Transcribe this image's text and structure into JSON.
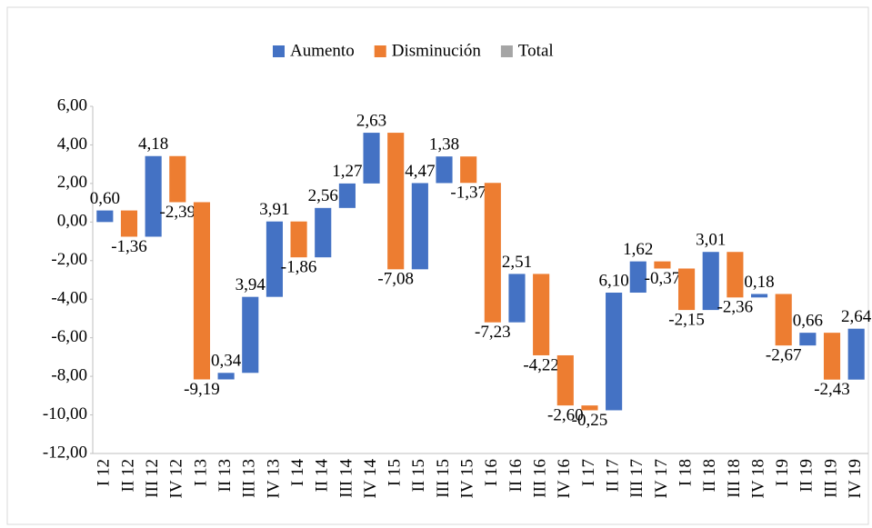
{
  "chart_data": {
    "type": "waterfall",
    "categories": [
      "I 12",
      "II 12",
      "III 12",
      "IV 12",
      "I 13",
      "II 13",
      "III 13",
      "IV 13",
      "I 14",
      "II 14",
      "III 14",
      "IV 14",
      "I 15",
      "II 15",
      "III 15",
      "IV 15",
      "I 16",
      "II 16",
      "III 16",
      "IV 16",
      "I 17",
      "II 17",
      "III 17",
      "IV 17",
      "I 18",
      "II 18",
      "III 18",
      "IV 18",
      "I 19",
      "II 19",
      "III 19",
      "IV 19"
    ],
    "series": [
      {
        "name": "Aumento",
        "color": "#4472c4",
        "values": [
          0.6,
          null,
          4.18,
          null,
          null,
          0.34,
          3.94,
          3.91,
          null,
          2.56,
          1.27,
          2.63,
          null,
          4.47,
          1.38,
          null,
          null,
          2.51,
          null,
          null,
          null,
          6.1,
          1.62,
          null,
          null,
          3.01,
          null,
          0.18,
          null,
          0.66,
          null,
          2.64
        ],
        "value_labels": [
          "0,60",
          null,
          "4,18",
          null,
          null,
          "0,34",
          "3,94",
          "3,91",
          null,
          "2,56",
          "1,27",
          "2,63",
          null,
          "4,47",
          "1,38",
          null,
          null,
          "2,51",
          null,
          null,
          null,
          "6,10",
          "1,62",
          null,
          null,
          "3,01",
          null,
          "0,18",
          null,
          "0,66",
          null,
          "2,64"
        ]
      },
      {
        "name": "Disminución",
        "color": "#ed7d31",
        "values": [
          null,
          -1.36,
          null,
          -2.39,
          -9.19,
          null,
          null,
          null,
          -1.86,
          null,
          null,
          null,
          -7.08,
          null,
          null,
          -1.37,
          -7.23,
          null,
          -4.22,
          -2.6,
          -0.25,
          null,
          null,
          -0.37,
          -2.15,
          null,
          -2.36,
          null,
          -2.67,
          null,
          -2.43,
          null
        ],
        "value_labels": [
          null,
          "-1,36",
          null,
          "-2,39",
          "-9,19",
          null,
          null,
          null,
          "-1,86",
          null,
          null,
          null,
          "-7,08",
          null,
          null,
          "-1,37",
          "-7,23",
          null,
          "-4,22",
          "-2,60",
          "-0,25",
          null,
          null,
          "-0,37",
          "-2,15",
          null,
          "-2,36",
          null,
          "-2,67",
          null,
          "-2,43",
          null
        ]
      },
      {
        "name": "Total",
        "color": "#a5a5a5"
      }
    ],
    "ylim": [
      -12,
      6
    ],
    "yticks": [
      {
        "value": 6,
        "label": "6,00"
      },
      {
        "value": 4,
        "label": "4,00"
      },
      {
        "value": 2,
        "label": "2,00"
      },
      {
        "value": 0,
        "label": "0,00"
      },
      {
        "value": -2,
        "label": "-2,00"
      },
      {
        "value": -4,
        "label": "-4,00"
      },
      {
        "value": -6,
        "label": "-6,00"
      },
      {
        "value": -8,
        "label": "-8,00"
      },
      {
        "value": -10,
        "label": "-10,00"
      },
      {
        "value": -12,
        "label": "-12,00"
      }
    ]
  }
}
